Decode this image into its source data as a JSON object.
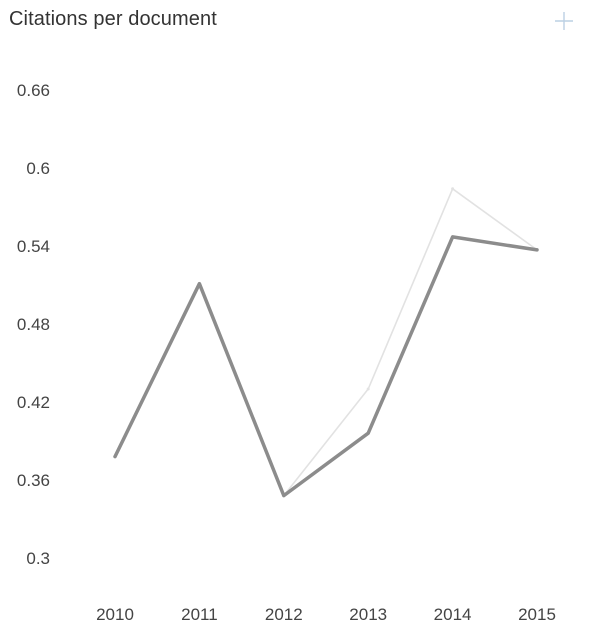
{
  "chart_data": {
    "type": "line",
    "title": "Citations per document",
    "xlabel": "",
    "ylabel": "",
    "categories": [
      "2010",
      "2011",
      "2012",
      "2013",
      "2014",
      "2015"
    ],
    "yticks": [
      "0.3",
      "0.36",
      "0.42",
      "0.48",
      "0.54",
      "0.6",
      "0.66"
    ],
    "ylim": [
      0.3,
      0.66
    ],
    "grid": false,
    "series": [
      {
        "values": [
          0.378,
          0.511,
          0.348,
          0.396,
          0.547,
          0.537
        ],
        "color": "#8c8c8c"
      },
      {
        "values": [
          0.378,
          0.511,
          0.348,
          0.43,
          0.584,
          0.537
        ],
        "color": "#e2e2e2"
      }
    ]
  },
  "icons": {
    "expand": "plus-icon"
  }
}
